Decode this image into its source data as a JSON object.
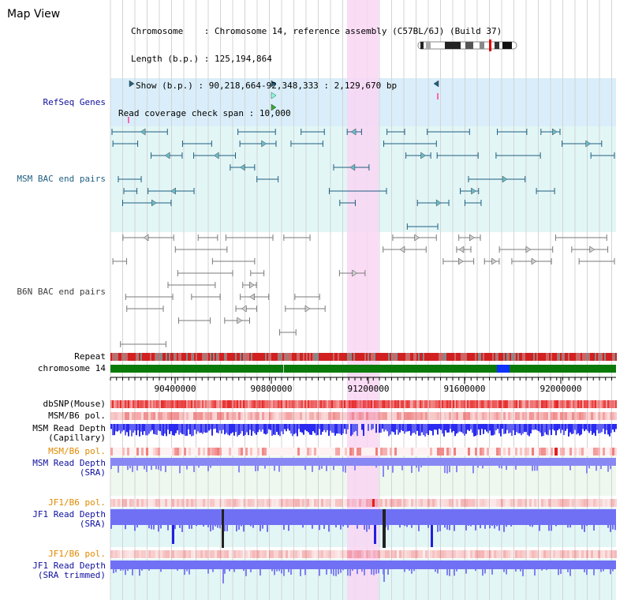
{
  "title": "Map View",
  "info": {
    "chromosome_label": "Chromosome",
    "chromosome": "Chromosome 14, reference assembly (C57BL/6J) (Build 37)",
    "length_label": "Length (b.p.)",
    "length": "125,194,864",
    "show_label": "Show (b.p.)",
    "show": "90,218,664-92,348,333 : 2,129,670 bp",
    "coverage_label": "Read coverage check span",
    "coverage": "10,000"
  },
  "tracks": {
    "refseq": "RefSeq Genes",
    "msm_bac": "MSM BAC end pairs",
    "b6n_bac": "B6N BAC end pairs",
    "repeat": "Repeat",
    "chromosome": "chromosome 14",
    "dbsnp": "dbSNP(Mouse)",
    "msm_b6_pol_1": "MSM/B6 pol.",
    "msm_depth_cap_1": "MSM Read Depth",
    "msm_depth_cap_2": "(Capillary)",
    "msm_b6_pol_2": "MSM/B6 pol.",
    "msm_depth_sra_1": "MSM Read Depth",
    "msm_depth_sra_2": "(SRA)",
    "jf1_b6_pol_1": "JF1/B6 pol.",
    "jf1_depth_sra_1": "JF1 Read Depth",
    "jf1_depth_sra_2": "(SRA)",
    "jf1_b6_pol_2": "JF1/B6 pol.",
    "jf1_depth_trim_1": "JF1 Read Depth",
    "jf1_depth_trim_2": "(SRA trimmed)"
  },
  "ruler": {
    "ticks": [
      "90400000",
      "90800000",
      "91200000",
      "91600000",
      "92000000"
    ]
  },
  "colors": {
    "refseq_label": "#1010a0",
    "msm_label": "#1f5f80",
    "b6n_label": "#404040",
    "pol_orange": "#e08a00",
    "depth_blue": "#0000c0",
    "highlight": "#f9d6f3",
    "chromosome_green": "#0a7a0a",
    "repeat_red": "#d22020"
  }
}
